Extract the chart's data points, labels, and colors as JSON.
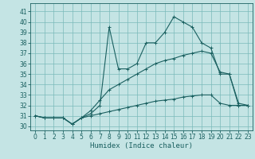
{
  "xlabel": "Humidex (Indice chaleur)",
  "ylabel": "",
  "bg_color": "#c4e4e4",
  "grid_color": "#7ababa",
  "line_color": "#1a6060",
  "x_ticks": [
    0,
    1,
    2,
    3,
    4,
    5,
    6,
    7,
    8,
    9,
    10,
    11,
    12,
    13,
    14,
    15,
    16,
    17,
    18,
    19,
    20,
    21,
    22,
    23
  ],
  "y_ticks": [
    30,
    31,
    32,
    33,
    34,
    35,
    36,
    37,
    38,
    39,
    40,
    41
  ],
  "ylim": [
    29.6,
    41.8
  ],
  "xlim": [
    -0.5,
    23.5
  ],
  "line1": [
    31,
    30.8,
    30.8,
    30.8,
    30.2,
    30.8,
    31.2,
    32.0,
    39.5,
    35.5,
    35.5,
    36.0,
    38.0,
    38.0,
    39.0,
    40.5,
    40.0,
    39.5,
    38.0,
    37.5,
    35.0,
    35.0,
    32.0,
    32.0
  ],
  "line2": [
    31,
    30.8,
    30.8,
    30.8,
    30.2,
    30.8,
    31.5,
    32.5,
    33.5,
    34.0,
    34.5,
    35.0,
    35.5,
    36.0,
    36.3,
    36.5,
    36.8,
    37.0,
    37.2,
    37.0,
    35.2,
    35.0,
    32.2,
    32.0
  ],
  "line3": [
    31,
    30.8,
    30.8,
    30.8,
    30.2,
    30.8,
    31.0,
    31.2,
    31.4,
    31.6,
    31.8,
    32.0,
    32.2,
    32.4,
    32.5,
    32.6,
    32.8,
    32.9,
    33.0,
    33.0,
    32.2,
    32.0,
    32.0,
    32.0
  ],
  "tick_fontsize": 5.5,
  "xlabel_fontsize": 6.5
}
